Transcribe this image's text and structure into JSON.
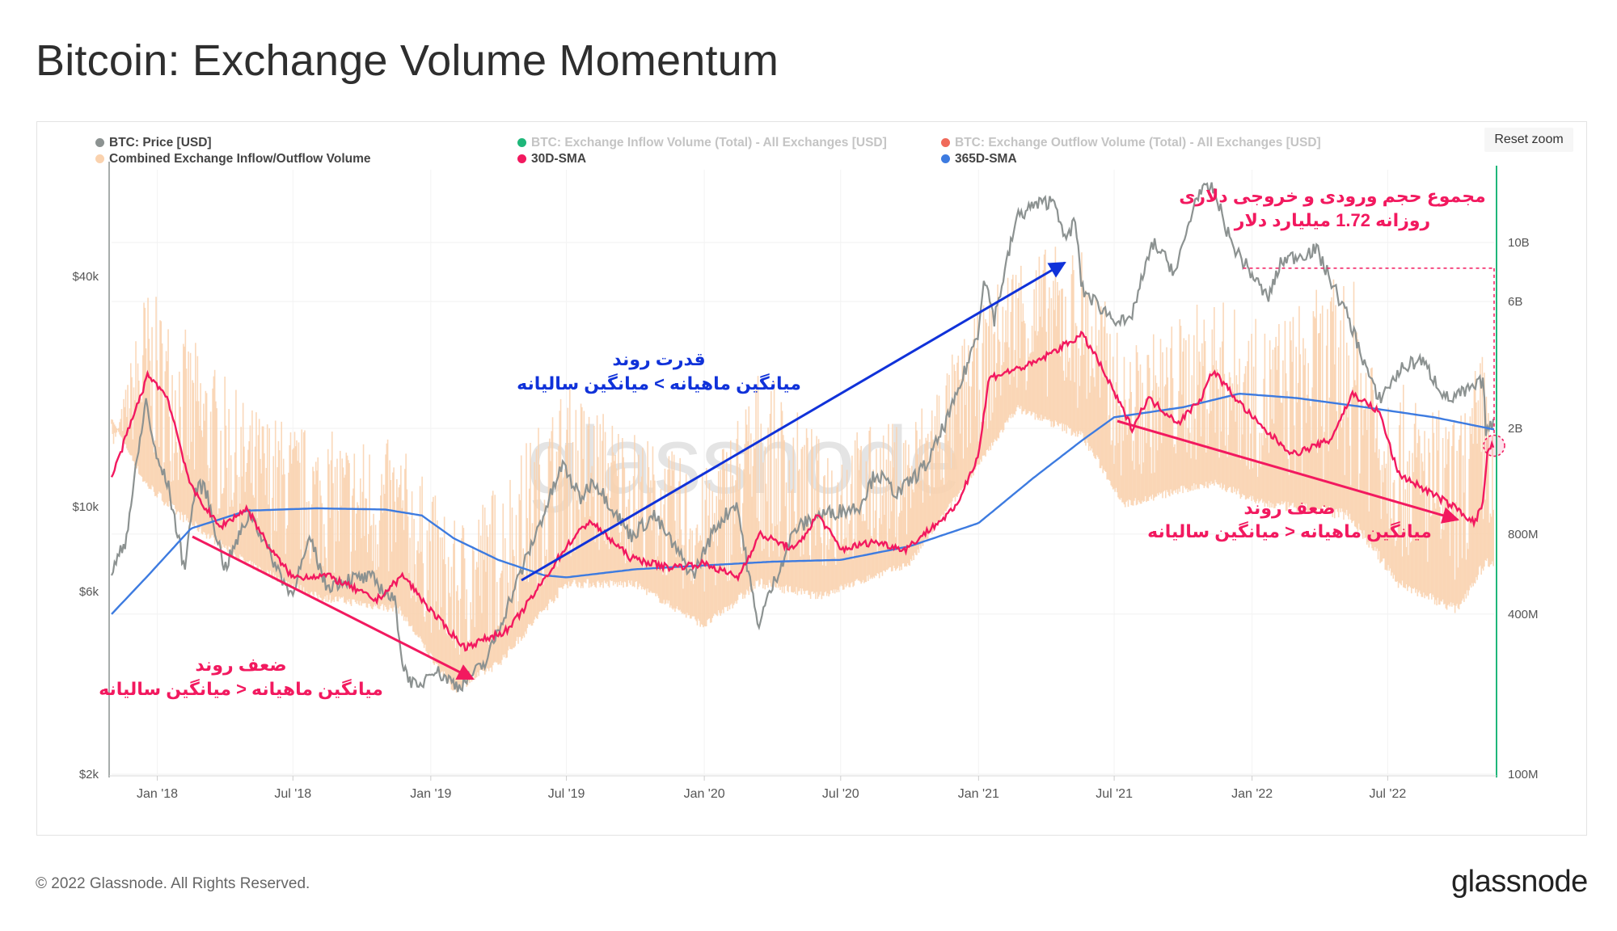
{
  "page": {
    "title": "Bitcoin: Exchange Volume Momentum",
    "reset_zoom": "Reset zoom",
    "copyright": "© 2022 Glassnode. All Rights Reserved.",
    "brand": "glassnode",
    "watermark": "glassnode"
  },
  "colors": {
    "price": "#8c9291",
    "inflow": "#1fb77a",
    "outflow": "#f06a5a",
    "combined": "#fad2ae",
    "sma30": "#f2195f",
    "sma365": "#3d7be0",
    "annotation_blue": "#1032d9",
    "annotation_red": "#f2195f",
    "right_axis_line": "#1fb77a"
  },
  "legend": [
    {
      "label": "BTC: Price [USD]",
      "color": "#8c9291",
      "active": true
    },
    {
      "label": "BTC: Exchange Inflow Volume (Total) - All Exchanges [USD]",
      "color": "#1fb77a",
      "active": false
    },
    {
      "label": "BTC: Exchange Outflow Volume (Total) - All Exchanges [USD]",
      "color": "#f06a5a",
      "active": false
    },
    {
      "label": "Combined Exchange Inflow/Outflow Volume",
      "color": "#fad2ae",
      "active": true
    },
    {
      "label": "30D-SMA",
      "color": "#f2195f",
      "active": true
    },
    {
      "label": "365D-SMA",
      "color": "#3d7be0",
      "active": true
    }
  ],
  "annotations": {
    "weak_trend_1": {
      "title": "ضعف روند",
      "subtitle": "میانگین ماهیانه < میانگین سالیانه"
    },
    "strong_trend": {
      "title": "قدرت روند",
      "subtitle": "میانگین ماهیانه > میانگین سالیانه"
    },
    "weak_trend_2": {
      "title": "ضعف روند",
      "subtitle": "میانگین ماهیانه < میانگین سالیانه"
    },
    "daily_total": {
      "line1": "مجموع حجم ورودی و خروجی دلاری",
      "line2": "روزانه  1.72 میلیارد دلار"
    }
  },
  "chart_data": {
    "type": "line",
    "x_axis": {
      "type": "date",
      "range": [
        "2017-11-01",
        "2022-11-20"
      ],
      "ticks": [
        "Jan '18",
        "Jul '18",
        "Jan '19",
        "Jul '19",
        "Jan '20",
        "Jul '20",
        "Jan '21",
        "Jul '21",
        "Jan '22",
        "Jul '22"
      ],
      "tick_dates": [
        "2018-01-01",
        "2018-07-01",
        "2019-01-01",
        "2019-07-01",
        "2020-01-01",
        "2020-07-01",
        "2021-01-01",
        "2021-07-01",
        "2022-01-01",
        "2022-07-01"
      ]
    },
    "y_left": {
      "scale": "log",
      "unit": "USD",
      "ticks": [
        "$2k",
        "$6k",
        "$10k",
        "$40k"
      ],
      "tick_values": [
        2000,
        6000,
        10000,
        40000
      ]
    },
    "y_right": {
      "scale": "log",
      "unit": "USD",
      "ticks": [
        "100M",
        "400M",
        "800M",
        "2B",
        "6B",
        "10B"
      ],
      "tick_values": [
        100000000,
        400000000,
        800000000,
        2000000000,
        6000000000,
        10000000000
      ]
    },
    "series": [
      {
        "name": "BTC: Price [USD]",
        "axis": "left",
        "points": [
          [
            "2017-11-01",
            6700
          ],
          [
            "2017-11-20",
            8200
          ],
          [
            "2017-12-07",
            14000
          ],
          [
            "2017-12-17",
            19000
          ],
          [
            "2017-12-30",
            13500
          ],
          [
            "2018-01-15",
            11500
          ],
          [
            "2018-02-06",
            6900
          ],
          [
            "2018-02-20",
            11000
          ],
          [
            "2018-03-05",
            11400
          ],
          [
            "2018-04-01",
            6900
          ],
          [
            "2018-05-05",
            9700
          ],
          [
            "2018-06-01",
            7500
          ],
          [
            "2018-06-28",
            5900
          ],
          [
            "2018-07-25",
            8200
          ],
          [
            "2018-08-14",
            6200
          ],
          [
            "2018-09-15",
            6500
          ],
          [
            "2018-10-15",
            6500
          ],
          [
            "2018-11-15",
            5600
          ],
          [
            "2018-11-25",
            3800
          ],
          [
            "2018-12-15",
            3300
          ],
          [
            "2019-01-01",
            3800
          ],
          [
            "2019-02-07",
            3400
          ],
          [
            "2019-03-15",
            3900
          ],
          [
            "2019-04-05",
            5000
          ],
          [
            "2019-05-15",
            7900
          ],
          [
            "2019-06-26",
            12900
          ],
          [
            "2019-07-20",
            10500
          ],
          [
            "2019-08-06",
            11800
          ],
          [
            "2019-09-25",
            8400
          ],
          [
            "2019-10-26",
            9500
          ],
          [
            "2019-12-17",
            6600
          ],
          [
            "2020-01-15",
            8800
          ],
          [
            "2020-02-13",
            10300
          ],
          [
            "2020-03-12",
            4900
          ],
          [
            "2020-04-30",
            8700
          ],
          [
            "2020-06-01",
            9500
          ],
          [
            "2020-07-25",
            10000
          ],
          [
            "2020-08-17",
            12300
          ],
          [
            "2020-09-15",
            10800
          ],
          [
            "2020-10-25",
            13000
          ],
          [
            "2020-12-01",
            19000
          ],
          [
            "2021-01-01",
            29000
          ],
          [
            "2021-01-08",
            40500
          ],
          [
            "2021-01-22",
            31000
          ],
          [
            "2021-02-21",
            57000
          ],
          [
            "2021-03-13",
            61000
          ],
          [
            "2021-04-14",
            63500
          ],
          [
            "2021-04-25",
            49000
          ],
          [
            "2021-05-10",
            56000
          ],
          [
            "2021-05-19",
            37000
          ],
          [
            "2021-06-22",
            32000
          ],
          [
            "2021-07-20",
            29800
          ],
          [
            "2021-08-22",
            49000
          ],
          [
            "2021-09-21",
            41000
          ],
          [
            "2021-10-20",
            66000
          ],
          [
            "2021-11-10",
            68000
          ],
          [
            "2021-12-04",
            49000
          ],
          [
            "2022-01-22",
            35000
          ],
          [
            "2022-02-10",
            44000
          ],
          [
            "2022-03-28",
            47000
          ],
          [
            "2022-05-10",
            31000
          ],
          [
            "2022-06-18",
            19000
          ],
          [
            "2022-07-20",
            23000
          ],
          [
            "2022-08-14",
            24300
          ],
          [
            "2022-09-20",
            19000
          ],
          [
            "2022-10-25",
            20500
          ],
          [
            "2022-11-05",
            21300
          ],
          [
            "2022-11-09",
            16000
          ],
          [
            "2022-11-20",
            16300
          ]
        ]
      },
      {
        "name": "Combined Exchange Inflow/Outflow Volume",
        "axis": "right",
        "envelope": true,
        "points": [
          [
            "2017-11-01",
            1500000000,
            2200000000
          ],
          [
            "2017-12-15",
            7000000000,
            1200000000
          ],
          [
            "2018-02-01",
            5000000000,
            900000000
          ],
          [
            "2018-05-01",
            2500000000,
            600000000
          ],
          [
            "2018-08-01",
            2000000000,
            450000000
          ],
          [
            "2018-11-20",
            1800000000,
            400000000
          ],
          [
            "2019-02-01",
            900000000,
            200000000
          ],
          [
            "2019-04-01",
            1300000000,
            250000000
          ],
          [
            "2019-07-01",
            3000000000,
            500000000
          ],
          [
            "2019-10-01",
            2000000000,
            500000000
          ],
          [
            "2020-01-01",
            1400000000,
            350000000
          ],
          [
            "2020-03-15",
            3500000000,
            500000000
          ],
          [
            "2020-06-01",
            1900000000,
            450000000
          ],
          [
            "2020-10-01",
            2200000000,
            600000000
          ],
          [
            "2021-01-01",
            5500000000,
            1400000000
          ],
          [
            "2021-02-21",
            9500000000,
            2300000000
          ],
          [
            "2021-05-19",
            10000000000,
            1800000000
          ],
          [
            "2021-07-15",
            4000000000,
            1000000000
          ],
          [
            "2021-11-10",
            6500000000,
            1200000000
          ],
          [
            "2022-01-15",
            5000000000,
            1000000000
          ],
          [
            "2022-05-10",
            8000000000,
            900000000
          ],
          [
            "2022-07-15",
            3000000000,
            500000000
          ],
          [
            "2022-10-01",
            2200000000,
            400000000
          ],
          [
            "2022-11-09",
            4500000000,
            600000000
          ],
          [
            "2022-11-20",
            1720000000,
            600000000
          ]
        ]
      },
      {
        "name": "30D-SMA",
        "axis": "right",
        "points": [
          [
            "2017-11-01",
            1300000000
          ],
          [
            "2017-12-20",
            3200000000
          ],
          [
            "2018-01-15",
            2600000000
          ],
          [
            "2018-02-15",
            1200000000
          ],
          [
            "2018-03-25",
            850000000
          ],
          [
            "2018-05-01",
            1000000000
          ],
          [
            "2018-06-01",
            700000000
          ],
          [
            "2018-07-01",
            550000000
          ],
          [
            "2018-08-15",
            560000000
          ],
          [
            "2018-09-20",
            500000000
          ],
          [
            "2018-10-20",
            450000000
          ],
          [
            "2018-11-25",
            560000000
          ],
          [
            "2019-01-05",
            400000000
          ],
          [
            "2019-02-15",
            300000000
          ],
          [
            "2019-04-15",
            350000000
          ],
          [
            "2019-05-20",
            480000000
          ],
          [
            "2019-07-01",
            720000000
          ],
          [
            "2019-08-01",
            900000000
          ],
          [
            "2019-09-25",
            650000000
          ],
          [
            "2019-11-15",
            600000000
          ],
          [
            "2020-01-01",
            620000000
          ],
          [
            "2020-02-15",
            550000000
          ],
          [
            "2020-03-15",
            800000000
          ],
          [
            "2020-05-01",
            700000000
          ],
          [
            "2020-06-01",
            950000000
          ],
          [
            "2020-07-01",
            700000000
          ],
          [
            "2020-08-15",
            750000000
          ],
          [
            "2020-09-25",
            700000000
          ],
          [
            "2020-10-20",
            800000000
          ],
          [
            "2020-12-01",
            1000000000
          ],
          [
            "2021-01-01",
            1600000000
          ],
          [
            "2021-01-15",
            3100000000
          ],
          [
            "2021-03-15",
            3500000000
          ],
          [
            "2021-05-19",
            4500000000
          ],
          [
            "2021-06-05",
            3800000000
          ],
          [
            "2021-07-25",
            2000000000
          ],
          [
            "2021-08-15",
            2600000000
          ],
          [
            "2021-09-25",
            2100000000
          ],
          [
            "2021-10-25",
            2600000000
          ],
          [
            "2021-11-10",
            3300000000
          ],
          [
            "2021-12-15",
            2500000000
          ],
          [
            "2022-01-15",
            2000000000
          ],
          [
            "2022-02-25",
            1600000000
          ],
          [
            "2022-04-15",
            1800000000
          ],
          [
            "2022-05-15",
            2700000000
          ],
          [
            "2022-06-20",
            2300000000
          ],
          [
            "2022-07-15",
            1350000000
          ],
          [
            "2022-08-15",
            1200000000
          ],
          [
            "2022-10-01",
            1000000000
          ],
          [
            "2022-10-25",
            880000000
          ],
          [
            "2022-11-05",
            1050000000
          ],
          [
            "2022-11-12",
            1700000000
          ],
          [
            "2022-11-20",
            1720000000
          ]
        ]
      },
      {
        "name": "365D-SMA",
        "axis": "right",
        "points": [
          [
            "2017-11-01",
            400000000
          ],
          [
            "2017-12-20",
            560000000
          ],
          [
            "2018-02-15",
            840000000
          ],
          [
            "2018-05-01",
            980000000
          ],
          [
            "2018-08-01",
            1000000000
          ],
          [
            "2018-11-01",
            990000000
          ],
          [
            "2018-12-20",
            940000000
          ],
          [
            "2019-02-01",
            770000000
          ],
          [
            "2019-04-01",
            640000000
          ],
          [
            "2019-06-01",
            560000000
          ],
          [
            "2019-07-01",
            550000000
          ],
          [
            "2019-10-01",
            590000000
          ],
          [
            "2020-01-01",
            610000000
          ],
          [
            "2020-04-01",
            630000000
          ],
          [
            "2020-07-01",
            640000000
          ],
          [
            "2020-10-01",
            720000000
          ],
          [
            "2021-01-01",
            880000000
          ],
          [
            "2021-03-15",
            1300000000
          ],
          [
            "2021-05-19",
            1800000000
          ],
          [
            "2021-07-01",
            2200000000
          ],
          [
            "2021-10-01",
            2400000000
          ],
          [
            "2021-12-15",
            2700000000
          ],
          [
            "2022-03-01",
            2600000000
          ],
          [
            "2022-06-01",
            2400000000
          ],
          [
            "2022-09-01",
            2200000000
          ],
          [
            "2022-11-20",
            1980000000
          ]
        ]
      }
    ],
    "markers": [
      {
        "type": "threshold_line",
        "value": 8000000000,
        "from": "2021-12-20",
        "to": "2022-11-20"
      },
      {
        "type": "circle",
        "date": "2022-11-20",
        "value": 1720000000
      }
    ],
    "grid": true,
    "legend_position": "top"
  }
}
